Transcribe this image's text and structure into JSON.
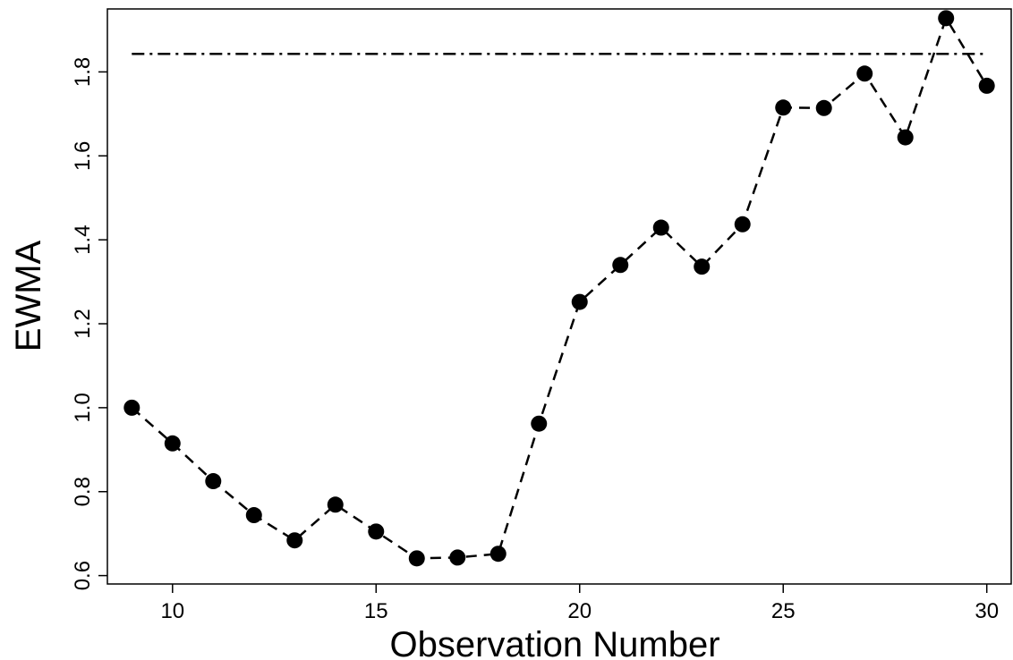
{
  "chart_data": {
    "type": "line",
    "title": "",
    "xlabel": "Observation Number",
    "ylabel": "EWMA",
    "xlim": [
      8.4,
      30.6
    ],
    "ylim": [
      0.58,
      1.95
    ],
    "x_ticks": [
      10,
      15,
      20,
      25,
      30
    ],
    "y_ticks": [
      0.6,
      0.8,
      1.0,
      1.2,
      1.4,
      1.6,
      1.8
    ],
    "grid": false,
    "legend": "none",
    "series": [
      {
        "x": [
          9,
          10,
          11,
          12,
          13,
          14,
          15,
          16,
          17,
          18,
          19,
          20,
          21,
          22,
          23,
          24,
          25,
          26,
          27,
          28,
          29,
          30
        ],
        "values": [
          1.0,
          0.915,
          0.825,
          0.744,
          0.684,
          0.769,
          0.705,
          0.641,
          0.643,
          0.652,
          0.962,
          1.252,
          1.34,
          1.429,
          1.336,
          1.437,
          1.715,
          1.714,
          1.796,
          1.644,
          1.928,
          1.767
        ],
        "line_style": "dashed",
        "marker": "filled-circle",
        "color": "#000000"
      }
    ],
    "reference_lines": [
      {
        "y": 1.843,
        "x_range": [
          9,
          30
        ],
        "line_style": "dash-dot",
        "color": "#000000"
      }
    ]
  }
}
